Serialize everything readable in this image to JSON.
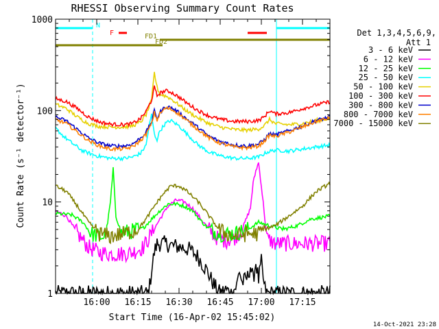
{
  "chart_data": {
    "type": "line",
    "title": "RHESSI Observing Summary Count Rates",
    "xlabel": "Start Time (16-Apr-02 15:45:02)",
    "ylabel": "Count Rate (s⁻¹ detector⁻¹)",
    "yscale": "log",
    "ylim": [
      1,
      1000
    ],
    "xlim_minutes": [
      0,
      100
    ],
    "x_ticks": [
      {
        "label": "16:00",
        "minute": 15
      },
      {
        "label": "16:15",
        "minute": 30
      },
      {
        "label": "16:30",
        "minute": 45
      },
      {
        "label": "16:45",
        "minute": 60
      },
      {
        "label": "17:00",
        "minute": 75
      },
      {
        "label": "17:15",
        "minute": 90
      }
    ],
    "y_ticks": [
      {
        "label": "1",
        "value": 1
      },
      {
        "label": "10",
        "value": 10
      },
      {
        "label": "100",
        "value": 100
      },
      {
        "label": "1000",
        "value": 1000
      }
    ],
    "legend": {
      "header": [
        "Det 1,3,4,5,6,9,",
        "Att 1"
      ],
      "position": "right"
    },
    "series": [
      {
        "name": "3 - 6 keV",
        "color": "#000000",
        "points": [
          [
            0,
            1
          ],
          [
            30,
            1
          ],
          [
            34,
            1
          ],
          [
            35,
            1.8
          ],
          [
            36,
            2.8
          ],
          [
            37,
            3.5
          ],
          [
            40,
            3.5
          ],
          [
            43,
            3.3
          ],
          [
            46,
            3.2
          ],
          [
            49,
            3.0
          ],
          [
            52,
            2.5
          ],
          [
            55,
            1.8
          ],
          [
            58,
            1.2
          ],
          [
            60,
            1
          ],
          [
            62,
            1.1
          ],
          [
            64,
            1
          ],
          [
            66,
            1.2
          ],
          [
            67,
            1.8
          ],
          [
            68,
            1.3
          ],
          [
            70,
            1.5
          ],
          [
            71,
            2.0
          ],
          [
            72,
            1.4
          ],
          [
            73,
            2.2
          ],
          [
            74,
            1.4
          ],
          [
            75,
            2.2
          ],
          [
            76,
            1.2
          ],
          [
            77,
            1
          ],
          [
            100,
            1
          ]
        ]
      },
      {
        "name": "6 - 12 keV",
        "color": "#ff00ff",
        "points": [
          [
            0,
            8
          ],
          [
            4,
            7
          ],
          [
            8,
            4.5
          ],
          [
            12,
            3.2
          ],
          [
            16,
            2.8
          ],
          [
            20,
            2.7
          ],
          [
            24,
            2.7
          ],
          [
            28,
            2.8
          ],
          [
            32,
            3.2
          ],
          [
            35,
            4.5
          ],
          [
            38,
            6.5
          ],
          [
            41,
            9.0
          ],
          [
            44,
            10.5
          ],
          [
            47,
            10
          ],
          [
            50,
            8.5
          ],
          [
            53,
            6.5
          ],
          [
            56,
            5.0
          ],
          [
            59,
            4.0
          ],
          [
            62,
            3.8
          ],
          [
            65,
            4.0
          ],
          [
            68,
            5.0
          ],
          [
            71,
            8.5
          ],
          [
            72,
            16
          ],
          [
            73,
            22
          ],
          [
            74,
            27
          ],
          [
            75,
            15
          ],
          [
            76,
            8
          ],
          [
            77,
            4
          ],
          [
            80,
            3.5
          ],
          [
            90,
            3.5
          ],
          [
            100,
            3.5
          ]
        ]
      },
      {
        "name": "12 - 25 keV",
        "color": "#00ff00",
        "points": [
          [
            0,
            7.5
          ],
          [
            6,
            7.2
          ],
          [
            10,
            6.0
          ],
          [
            13,
            4.5
          ],
          [
            16,
            4.2
          ],
          [
            18,
            4.2
          ],
          [
            19,
            6
          ],
          [
            20,
            10
          ],
          [
            21,
            23
          ],
          [
            22,
            7
          ],
          [
            24,
            4.6
          ],
          [
            28,
            4.8
          ],
          [
            32,
            5.2
          ],
          [
            35,
            6.5
          ],
          [
            38,
            8.0
          ],
          [
            41,
            9.5
          ],
          [
            44,
            9.5
          ],
          [
            47,
            9.0
          ],
          [
            50,
            8.0
          ],
          [
            53,
            6.2
          ],
          [
            56,
            5.0
          ],
          [
            60,
            4.5
          ],
          [
            65,
            4.5
          ],
          [
            70,
            5.0
          ],
          [
            74,
            6.0
          ],
          [
            78,
            5.5
          ],
          [
            83,
            5.0
          ],
          [
            88,
            5.5
          ],
          [
            93,
            6.5
          ],
          [
            100,
            7.0
          ]
        ]
      },
      {
        "name": "25 - 50 keV",
        "color": "#00ffff",
        "points": [
          [
            0,
            64
          ],
          [
            3,
            52
          ],
          [
            6,
            44
          ],
          [
            10,
            36
          ],
          [
            15,
            32
          ],
          [
            20,
            30
          ],
          [
            25,
            30
          ],
          [
            28,
            31
          ],
          [
            31,
            34
          ],
          [
            33,
            42
          ],
          [
            34,
            65
          ],
          [
            35,
            90
          ],
          [
            36,
            55
          ],
          [
            37,
            48
          ],
          [
            38,
            60
          ],
          [
            40,
            72
          ],
          [
            42,
            78
          ],
          [
            45,
            68
          ],
          [
            48,
            55
          ],
          [
            52,
            42
          ],
          [
            56,
            35
          ],
          [
            60,
            32
          ],
          [
            65,
            30
          ],
          [
            70,
            30
          ],
          [
            74,
            31
          ],
          [
            77,
            35
          ],
          [
            80,
            37
          ],
          [
            85,
            36
          ],
          [
            90,
            38
          ],
          [
            95,
            40
          ],
          [
            100,
            42
          ]
        ]
      },
      {
        "name": "50 - 100 keV",
        "color": "#e6d000",
        "points": [
          [
            0,
            117
          ],
          [
            4,
            105
          ],
          [
            8,
            85
          ],
          [
            12,
            72
          ],
          [
            16,
            67
          ],
          [
            20,
            66
          ],
          [
            25,
            66
          ],
          [
            28,
            68
          ],
          [
            31,
            75
          ],
          [
            33,
            90
          ],
          [
            35,
            130
          ],
          [
            36,
            260
          ],
          [
            37,
            180
          ],
          [
            38,
            150
          ],
          [
            40,
            145
          ],
          [
            42,
            135
          ],
          [
            45,
            115
          ],
          [
            48,
            98
          ],
          [
            52,
            83
          ],
          [
            56,
            72
          ],
          [
            60,
            66
          ],
          [
            65,
            62
          ],
          [
            70,
            61
          ],
          [
            74,
            63
          ],
          [
            76,
            68
          ],
          [
            78,
            80
          ],
          [
            80,
            72
          ],
          [
            85,
            70
          ],
          [
            90,
            72
          ],
          [
            95,
            78
          ],
          [
            100,
            82
          ]
        ]
      },
      {
        "name": "100 - 300 keV",
        "color": "#ff0000",
        "points": [
          [
            0,
            135
          ],
          [
            4,
            125
          ],
          [
            8,
            105
          ],
          [
            12,
            85
          ],
          [
            16,
            75
          ],
          [
            20,
            71
          ],
          [
            25,
            70
          ],
          [
            28,
            72
          ],
          [
            31,
            82
          ],
          [
            33,
            98
          ],
          [
            35,
            130
          ],
          [
            36,
            180
          ],
          [
            37,
            145
          ],
          [
            38,
            155
          ],
          [
            40,
            165
          ],
          [
            42,
            160
          ],
          [
            45,
            140
          ],
          [
            48,
            120
          ],
          [
            52,
            100
          ],
          [
            56,
            87
          ],
          [
            60,
            80
          ],
          [
            65,
            76
          ],
          [
            70,
            76
          ],
          [
            74,
            78
          ],
          [
            76,
            85
          ],
          [
            78,
            100
          ],
          [
            80,
            92
          ],
          [
            85,
            95
          ],
          [
            90,
            105
          ],
          [
            95,
            115
          ],
          [
            100,
            125
          ]
        ]
      },
      {
        "name": "300 - 800 keV",
        "color": "#0000cc",
        "points": [
          [
            0,
            85
          ],
          [
            4,
            77
          ],
          [
            8,
            62
          ],
          [
            12,
            50
          ],
          [
            16,
            44
          ],
          [
            20,
            41
          ],
          [
            25,
            41
          ],
          [
            28,
            43
          ],
          [
            31,
            50
          ],
          [
            33,
            58
          ],
          [
            35,
            75
          ],
          [
            36,
            100
          ],
          [
            37,
            82
          ],
          [
            38,
            95
          ],
          [
            40,
            110
          ],
          [
            42,
            108
          ],
          [
            45,
            95
          ],
          [
            48,
            80
          ],
          [
            52,
            65
          ],
          [
            56,
            52
          ],
          [
            60,
            46
          ],
          [
            65,
            42
          ],
          [
            70,
            41
          ],
          [
            74,
            43
          ],
          [
            76,
            48
          ],
          [
            78,
            56
          ],
          [
            80,
            54
          ],
          [
            85,
            60
          ],
          [
            90,
            68
          ],
          [
            95,
            78
          ],
          [
            100,
            85
          ]
        ]
      },
      {
        "name": "800 - 7000 keV",
        "color": "#ff8000",
        "points": [
          [
            0,
            80
          ],
          [
            4,
            72
          ],
          [
            8,
            58
          ],
          [
            12,
            47
          ],
          [
            16,
            41
          ],
          [
            20,
            38
          ],
          [
            25,
            38
          ],
          [
            28,
            40
          ],
          [
            31,
            47
          ],
          [
            33,
            55
          ],
          [
            35,
            72
          ],
          [
            36,
            95
          ],
          [
            37,
            78
          ],
          [
            38,
            92
          ],
          [
            40,
            106
          ],
          [
            42,
            104
          ],
          [
            45,
            92
          ],
          [
            48,
            77
          ],
          [
            52,
            62
          ],
          [
            56,
            50
          ],
          [
            60,
            44
          ],
          [
            65,
            40
          ],
          [
            70,
            39
          ],
          [
            74,
            41
          ],
          [
            76,
            46
          ],
          [
            78,
            54
          ],
          [
            80,
            52
          ],
          [
            85,
            58
          ],
          [
            90,
            66
          ],
          [
            95,
            76
          ],
          [
            100,
            83
          ]
        ]
      },
      {
        "name": "7000 - 15000 keV",
        "color": "#808000",
        "points": [
          [
            0,
            15
          ],
          [
            4,
            13
          ],
          [
            8,
            9
          ],
          [
            12,
            6
          ],
          [
            16,
            4.5
          ],
          [
            20,
            4.2
          ],
          [
            25,
            4.5
          ],
          [
            30,
            5
          ],
          [
            33,
            6.5
          ],
          [
            36,
            9
          ],
          [
            39,
            12
          ],
          [
            42,
            15
          ],
          [
            45,
            15
          ],
          [
            48,
            13
          ],
          [
            52,
            10
          ],
          [
            56,
            7
          ],
          [
            60,
            4.8
          ],
          [
            65,
            4.2
          ],
          [
            70,
            4.5
          ],
          [
            74,
            4.5
          ],
          [
            76,
            5
          ],
          [
            80,
            5.5
          ],
          [
            85,
            7
          ],
          [
            90,
            9
          ],
          [
            95,
            13
          ],
          [
            100,
            16
          ]
        ]
      }
    ],
    "flag_bars": [
      {
        "label": "N",
        "color": "#00ffff",
        "segments": [
          [
            0,
            13.5
          ],
          [
            80.5,
            100
          ]
        ],
        "level": 1
      },
      {
        "label": "F",
        "color": "#ff0000",
        "segments": [
          [
            23,
            26
          ],
          [
            70,
            77
          ]
        ],
        "level": 2
      },
      {
        "label": "FD1",
        "color": "#808000",
        "segments": [
          [
            38,
            100
          ]
        ],
        "level": 3
      },
      {
        "label": "FD2",
        "color": "#808000",
        "segments": [
          [
            0,
            39
          ]
        ],
        "level": 4
      }
    ],
    "vertical_lines": [
      {
        "minute": 0,
        "color": "#00ffff",
        "style": "solid"
      },
      {
        "minute": 13.5,
        "color": "#00ffff",
        "style": "dashed"
      },
      {
        "minute": 80.5,
        "color": "#00ffff",
        "style": "solid"
      },
      {
        "minute": 100,
        "color": "#00ffff",
        "style": "dashed"
      }
    ],
    "grid": false
  },
  "footer": {
    "timestamp": "14-Oct-2021 23:28"
  }
}
